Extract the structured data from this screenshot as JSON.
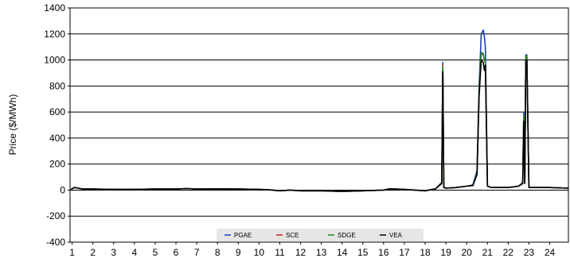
{
  "chart_data": {
    "type": "line",
    "title": "",
    "xlabel": "",
    "ylabel": "Price ($/MWh)",
    "xlim": [
      0.9,
      24.9
    ],
    "ylim": [
      -400,
      1400
    ],
    "x_ticks": [
      1,
      2,
      3,
      4,
      5,
      6,
      7,
      8,
      9,
      10,
      11,
      12,
      13,
      14,
      15,
      16,
      17,
      18,
      19,
      20,
      21,
      22,
      23,
      24
    ],
    "x_tick_labels": [
      "1",
      "2",
      "3",
      "4",
      "5",
      "6",
      "7",
      "8",
      "9",
      "10",
      "11",
      "12",
      "13",
      "14",
      "15",
      "16",
      "17",
      "18",
      "19",
      "20",
      "21",
      "22",
      "23",
      "24"
    ],
    "y_ticks": [
      -400,
      -200,
      0,
      200,
      400,
      600,
      800,
      1000,
      1200,
      1400
    ],
    "y_tick_labels": [
      "-400",
      "-200",
      "0",
      "200",
      "400",
      "600",
      "800",
      "1000",
      "1200",
      "1400"
    ],
    "grid": "horizontal",
    "legend": "bottom-center",
    "colors": {
      "PGAE": "#1f3fbf",
      "SCE": "#cc1f1f",
      "SDGE": "#1f8f1f",
      "VEA": "#000000"
    },
    "series": [
      {
        "name": "PGAE",
        "x": [
          0.95,
          1.1,
          1.3,
          1.5,
          2,
          3,
          4,
          5,
          6,
          6.5,
          7,
          8,
          9,
          10,
          10.5,
          11,
          11.5,
          12,
          13,
          14,
          15,
          16,
          16.3,
          17,
          17.5,
          18,
          18.5,
          18.8,
          18.85,
          18.9,
          19,
          19.5,
          20,
          20.3,
          20.5,
          20.6,
          20.7,
          20.8,
          20.85,
          20.9,
          21,
          21.2,
          22,
          22.5,
          22.7,
          22.75,
          22.8,
          22.85,
          22.9,
          23,
          23.5,
          24,
          24.9
        ],
        "y": [
          5,
          20,
          15,
          8,
          8,
          5,
          5,
          8,
          8,
          12,
          8,
          10,
          8,
          5,
          2,
          -5,
          0,
          -5,
          -5,
          -10,
          -5,
          0,
          10,
          5,
          0,
          -5,
          10,
          60,
          980,
          20,
          15,
          20,
          30,
          40,
          150,
          800,
          1200,
          1230,
          1180,
          1100,
          30,
          20,
          20,
          30,
          60,
          600,
          60,
          1040,
          1040,
          20,
          20,
          20,
          15
        ]
      },
      {
        "name": "SCE",
        "x": [
          0.95,
          1.1,
          1.3,
          1.5,
          2,
          3,
          4,
          5,
          6,
          6.5,
          7,
          8,
          9,
          10,
          10.5,
          11,
          11.5,
          12,
          13,
          14,
          15,
          16,
          16.3,
          17,
          17.5,
          18,
          18.5,
          18.8,
          18.85,
          18.9,
          19,
          19.5,
          20,
          20.3,
          20.5,
          20.6,
          20.7,
          20.8,
          20.85,
          20.9,
          21,
          21.2,
          22,
          22.5,
          22.7,
          22.75,
          22.8,
          22.85,
          22.9,
          23,
          23.5,
          24,
          24.9
        ],
        "y": [
          5,
          20,
          15,
          8,
          8,
          5,
          5,
          8,
          8,
          12,
          8,
          10,
          8,
          5,
          2,
          -5,
          0,
          -5,
          -5,
          -10,
          -5,
          0,
          10,
          5,
          0,
          -5,
          10,
          55,
          960,
          20,
          15,
          20,
          30,
          35,
          130,
          750,
          1050,
          1040,
          1000,
          980,
          30,
          20,
          20,
          30,
          55,
          560,
          55,
          1030,
          1030,
          20,
          20,
          20,
          15
        ]
      },
      {
        "name": "SDGE",
        "x": [
          0.95,
          1.1,
          1.3,
          1.5,
          2,
          3,
          4,
          5,
          6,
          6.5,
          7,
          8,
          9,
          10,
          10.5,
          11,
          11.5,
          12,
          13,
          14,
          15,
          16,
          16.3,
          17,
          17.5,
          18,
          18.5,
          18.8,
          18.85,
          18.9,
          19,
          19.5,
          20,
          20.3,
          20.5,
          20.6,
          20.7,
          20.8,
          20.85,
          20.9,
          21,
          21.2,
          22,
          22.5,
          22.7,
          22.75,
          22.8,
          22.85,
          22.9,
          23,
          23.5,
          24,
          24.9
        ],
        "y": [
          5,
          20,
          15,
          8,
          8,
          5,
          5,
          8,
          8,
          12,
          8,
          10,
          8,
          5,
          2,
          -5,
          0,
          -5,
          -5,
          -10,
          -5,
          0,
          10,
          5,
          0,
          -5,
          10,
          55,
          950,
          20,
          15,
          20,
          30,
          35,
          130,
          760,
          1060,
          1050,
          1000,
          990,
          30,
          20,
          20,
          30,
          55,
          570,
          55,
          1030,
          1030,
          20,
          20,
          20,
          15
        ]
      },
      {
        "name": "VEA",
        "x": [
          0.95,
          1.1,
          1.3,
          1.5,
          2,
          3,
          4,
          5,
          6,
          6.5,
          7,
          8,
          9,
          10,
          10.5,
          11,
          11.5,
          12,
          13,
          14,
          15,
          16,
          16.3,
          17,
          17.5,
          18,
          18.5,
          18.8,
          18.85,
          18.9,
          19,
          19.5,
          20,
          20.3,
          20.5,
          20.6,
          20.7,
          20.8,
          20.85,
          20.9,
          21,
          21.2,
          22,
          22.5,
          22.7,
          22.75,
          22.8,
          22.85,
          22.9,
          23,
          23.5,
          24,
          24.9
        ],
        "y": [
          5,
          20,
          15,
          8,
          8,
          5,
          5,
          8,
          8,
          12,
          8,
          10,
          8,
          5,
          2,
          -5,
          0,
          -5,
          -5,
          -10,
          -5,
          0,
          10,
          5,
          0,
          -5,
          10,
          50,
          910,
          20,
          15,
          20,
          30,
          35,
          120,
          720,
          1000,
          980,
          920,
          960,
          30,
          20,
          20,
          30,
          50,
          530,
          50,
          1000,
          1000,
          20,
          20,
          20,
          15
        ]
      }
    ]
  }
}
